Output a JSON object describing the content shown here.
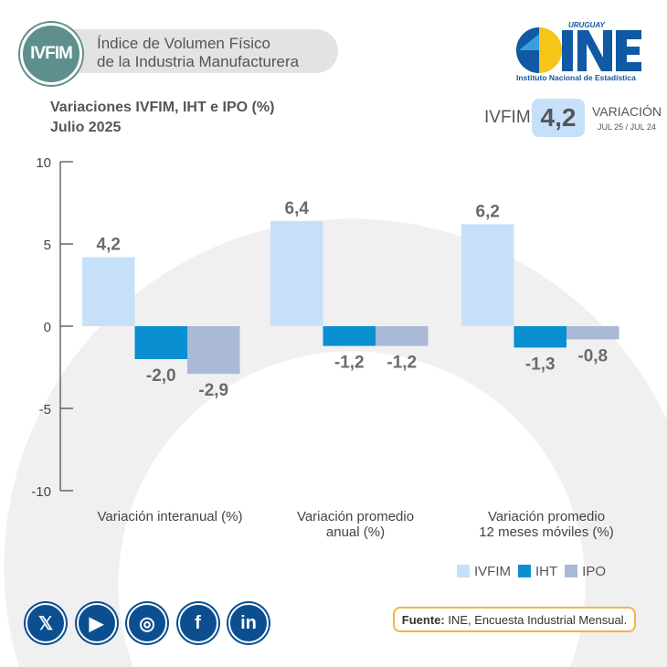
{
  "header": {
    "badge": "IVFIM",
    "title_line1": "Índice de Volumen Físico",
    "title_line2": "de la Industria Manufacturera"
  },
  "logo": {
    "country": "URUGUAY",
    "name": "INE",
    "subtitle": "Instituto Nacional de Estadística"
  },
  "kpi": {
    "label": "IVFIM",
    "value": "4,2",
    "caption": "VARIACIÓN",
    "period": "JUL 25 / JUL 24"
  },
  "chart_data": {
    "type": "bar",
    "title": "Variaciones IVFIM, IHT e IPO (%)",
    "subtitle": "Julio 2025",
    "categories": [
      "Variación interanual (%)",
      "Variación promedio anual (%)",
      "Variación promedio 12 meses móviles (%)"
    ],
    "category_lines": [
      [
        "Variación interanual (%)"
      ],
      [
        "Variación promedio",
        "anual (%)"
      ],
      [
        "Variación promedio",
        "12 meses móviles (%)"
      ]
    ],
    "series": [
      {
        "name": "IVFIM",
        "values": [
          4.2,
          6.4,
          6.2
        ],
        "labels": [
          "4,2",
          "6,4",
          "6,2"
        ],
        "color": "#c7e0fa"
      },
      {
        "name": "IHT",
        "values": [
          -2.0,
          -1.2,
          -1.3
        ],
        "labels": [
          "-2,0",
          "-1,2",
          "-1,3"
        ],
        "color": "#0a8fd0"
      },
      {
        "name": "IPO",
        "values": [
          -2.9,
          -1.2,
          -0.8
        ],
        "labels": [
          "-2,9",
          "-1,2",
          "-0,8"
        ],
        "color": "#a9b9d6"
      }
    ],
    "ylim": [
      -10,
      10
    ],
    "yticks": [
      10,
      5,
      0,
      -5,
      -10
    ],
    "grid": false,
    "legend": "bottom-right"
  },
  "footer": {
    "source_label": "Fuente:",
    "source_text": " INE, Encuesta Industrial Mensual.",
    "social": [
      {
        "icon": "x-icon",
        "glyph": "𝕏"
      },
      {
        "icon": "youtube-icon",
        "glyph": "▶"
      },
      {
        "icon": "instagram-icon",
        "glyph": "◎"
      },
      {
        "icon": "facebook-icon",
        "glyph": "f"
      },
      {
        "icon": "linkedin-icon",
        "glyph": "in"
      }
    ]
  }
}
